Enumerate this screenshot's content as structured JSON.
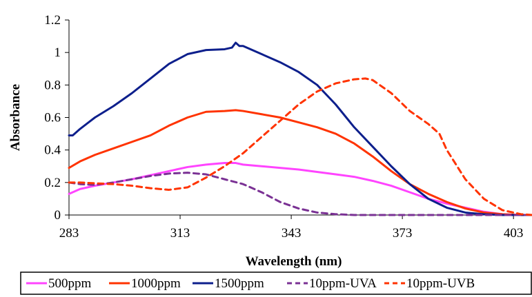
{
  "chart_data": {
    "type": "line",
    "xlabel": "Wavelength (nm)",
    "ylabel": "Absorbance",
    "xlim": [
      283,
      408
    ],
    "ylim": [
      0,
      1.2
    ],
    "x_ticks": [
      "283",
      "313",
      "343",
      "373",
      "403"
    ],
    "y_ticks": [
      "0",
      "0.2",
      "0.4",
      "0.6",
      "0.8",
      "1",
      "1.2"
    ],
    "grid": false,
    "legend_position": "bottom",
    "series": [
      {
        "name": "500ppm",
        "color": "#ff44ff",
        "dash": "solid",
        "x": [
          283,
          286,
          290,
          295,
          300,
          305,
          310,
          315,
          320,
          325,
          328,
          330,
          335,
          340,
          345,
          350,
          355,
          360,
          365,
          370,
          375,
          380,
          385,
          390,
          395,
          400,
          405,
          408
        ],
        "y": [
          0.13,
          0.16,
          0.18,
          0.2,
          0.22,
          0.245,
          0.27,
          0.295,
          0.31,
          0.32,
          0.32,
          0.31,
          0.3,
          0.29,
          0.28,
          0.265,
          0.25,
          0.235,
          0.21,
          0.18,
          0.14,
          0.1,
          0.07,
          0.045,
          0.02,
          0.005,
          0.0,
          0.0
        ]
      },
      {
        "name": "1000ppm",
        "color": "#ff3300",
        "dash": "solid",
        "x": [
          283,
          286,
          290,
          295,
          300,
          305,
          310,
          315,
          320,
          325,
          328,
          330,
          335,
          340,
          345,
          350,
          355,
          360,
          365,
          370,
          375,
          380,
          385,
          390,
          395,
          400,
          405,
          408
        ],
        "y": [
          0.29,
          0.33,
          0.37,
          0.41,
          0.45,
          0.49,
          0.55,
          0.6,
          0.635,
          0.64,
          0.645,
          0.64,
          0.62,
          0.6,
          0.57,
          0.54,
          0.5,
          0.44,
          0.36,
          0.27,
          0.19,
          0.13,
          0.08,
          0.04,
          0.015,
          0.005,
          0.0,
          0.0
        ]
      },
      {
        "name": "1500ppm",
        "color": "#0d1f8c",
        "dash": "solid",
        "x": [
          283,
          284,
          286,
          290,
          295,
          300,
          305,
          310,
          315,
          320,
          325,
          327,
          328,
          329,
          330,
          335,
          340,
          345,
          350,
          355,
          360,
          365,
          370,
          375,
          380,
          385,
          390,
          395,
          400,
          405,
          408
        ],
        "y": [
          0.49,
          0.49,
          0.53,
          0.6,
          0.67,
          0.75,
          0.84,
          0.93,
          0.99,
          1.015,
          1.02,
          1.03,
          1.06,
          1.04,
          1.04,
          0.99,
          0.94,
          0.88,
          0.8,
          0.68,
          0.54,
          0.42,
          0.3,
          0.19,
          0.1,
          0.045,
          0.015,
          0.005,
          0.0,
          0.0,
          0.0
        ]
      },
      {
        "name": "10ppm-UVA",
        "color": "#7a3194",
        "dash": "dashed",
        "x": [
          283,
          286,
          290,
          295,
          300,
          305,
          310,
          315,
          320,
          325,
          330,
          335,
          340,
          345,
          350,
          355,
          360,
          365,
          370,
          380,
          390,
          400,
          408
        ],
        "y": [
          0.2,
          0.19,
          0.185,
          0.2,
          0.22,
          0.24,
          0.255,
          0.26,
          0.25,
          0.22,
          0.19,
          0.14,
          0.08,
          0.04,
          0.015,
          0.005,
          0.0,
          0.0,
          0.0,
          0.0,
          0.0,
          0.0,
          0.0
        ]
      },
      {
        "name": "10ppm-UVB",
        "color": "#ff3300",
        "dash": "dashed",
        "x": [
          283,
          286,
          290,
          295,
          300,
          305,
          310,
          315,
          320,
          325,
          330,
          335,
          340,
          345,
          350,
          355,
          360,
          363,
          365,
          370,
          375,
          380,
          383,
          385,
          390,
          395,
          400,
          405,
          408
        ],
        "y": [
          0.2,
          0.2,
          0.195,
          0.19,
          0.18,
          0.165,
          0.155,
          0.17,
          0.23,
          0.3,
          0.38,
          0.48,
          0.58,
          0.68,
          0.76,
          0.81,
          0.835,
          0.84,
          0.83,
          0.75,
          0.64,
          0.56,
          0.5,
          0.4,
          0.22,
          0.1,
          0.03,
          0.005,
          0.0
        ]
      }
    ]
  }
}
